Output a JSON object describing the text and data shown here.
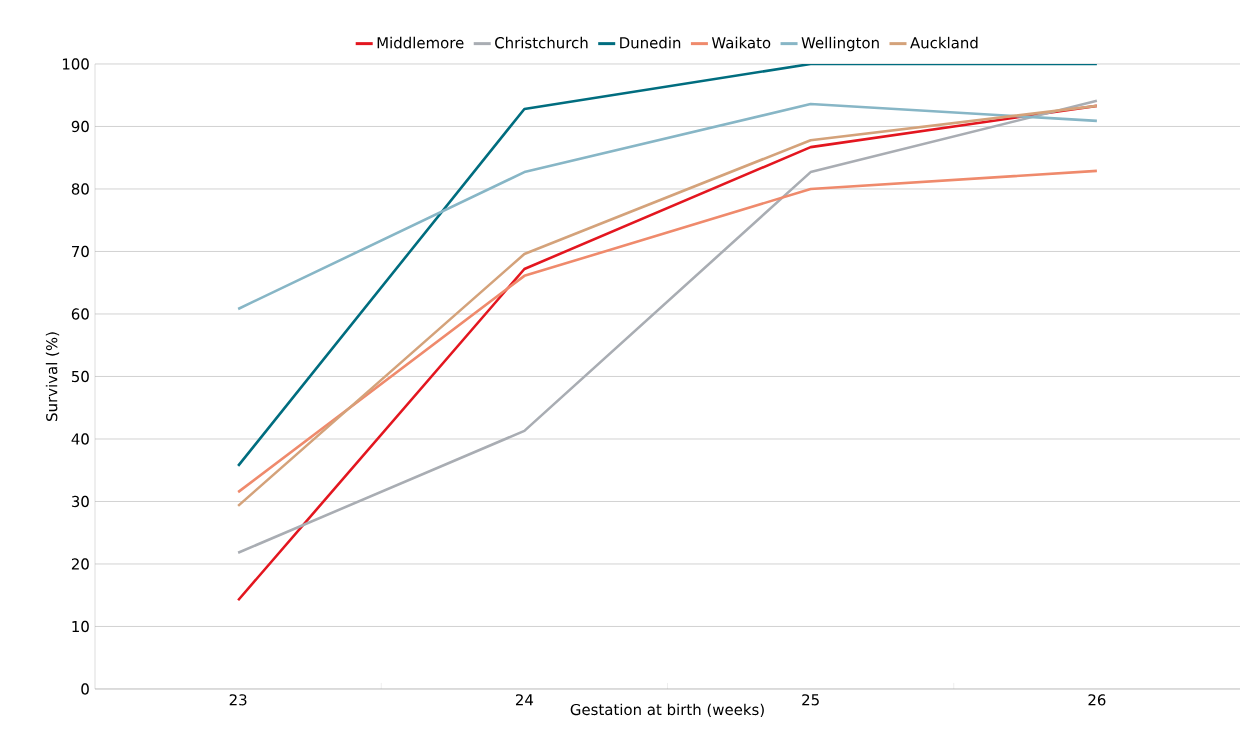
{
  "chart_data": {
    "type": "line",
    "xlabel": "Gestation at birth (weeks)",
    "ylabel": "Survival (%)",
    "categories": [
      "23",
      "24",
      "25",
      "26"
    ],
    "series": [
      {
        "name": "Middlemore",
        "color": "#e3161f",
        "values": [
          14.2,
          67.2,
          86.7,
          93.3
        ]
      },
      {
        "name": "Christchurch",
        "color": "#a9adb3",
        "values": [
          21.8,
          41.3,
          82.7,
          94.1
        ]
      },
      {
        "name": "Dunedin",
        "color": "#006d7f",
        "values": [
          35.7,
          92.8,
          100,
          100
        ]
      },
      {
        "name": "Waikato",
        "color": "#ef8a6c",
        "values": [
          31.5,
          66.1,
          80,
          82.9
        ]
      },
      {
        "name": "Wellington",
        "color": "#87b6c6",
        "values": [
          60.8,
          82.7,
          93.6,
          90.9
        ]
      },
      {
        "name": "Auckland",
        "color": "#d4a27a",
        "values": [
          29.3,
          69.6,
          87.8,
          93.3
        ]
      }
    ],
    "ylim": [
      0,
      100
    ],
    "yticks": [
      0,
      10,
      20,
      30,
      40,
      50,
      60,
      70,
      80,
      90,
      100
    ],
    "grid": "y",
    "legend": "top"
  }
}
